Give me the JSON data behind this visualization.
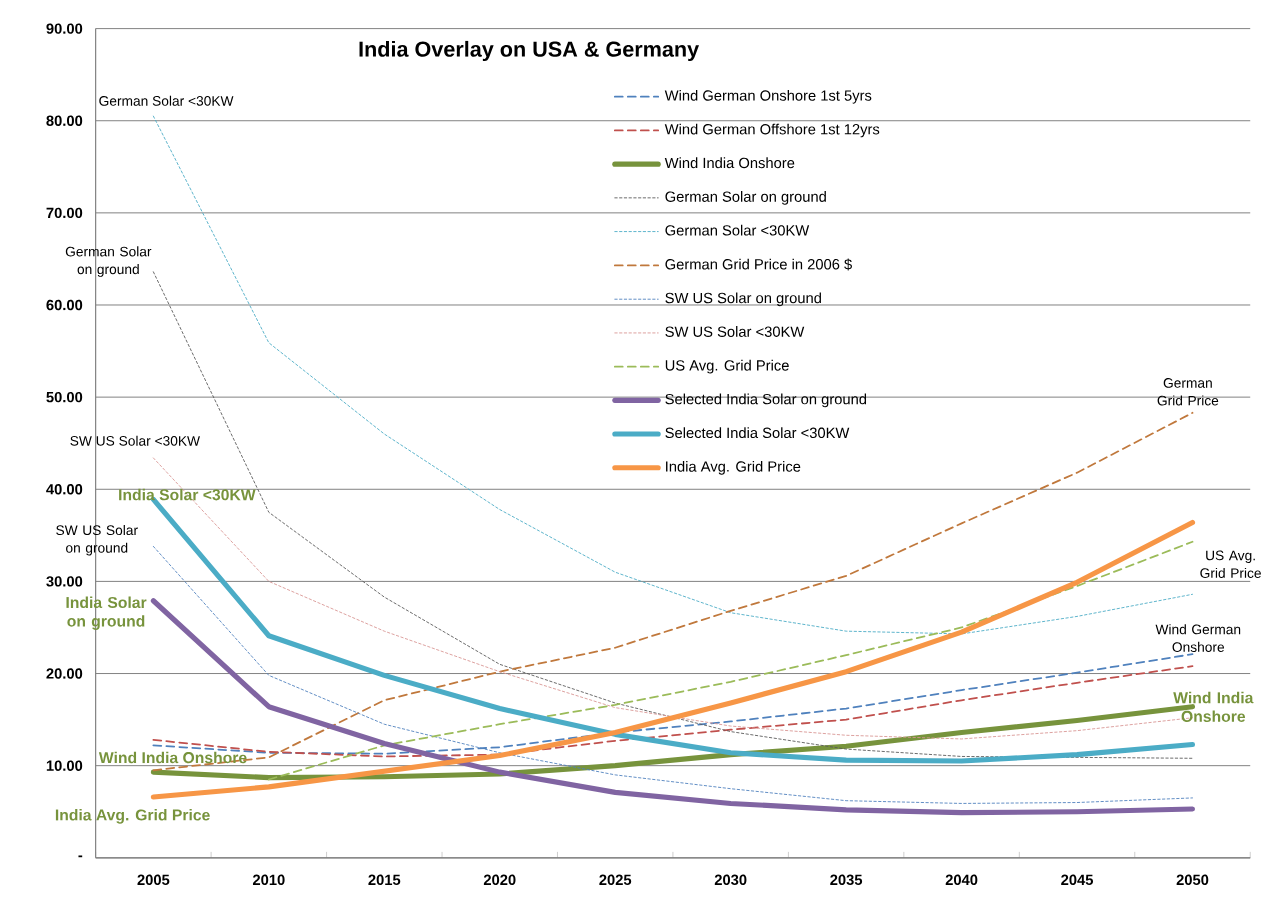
{
  "chart_data": {
    "type": "line",
    "title": "India Overlay on USA & Germany",
    "x": [
      2005,
      2010,
      2015,
      2020,
      2025,
      2030,
      2035,
      2040,
      2045,
      2050
    ],
    "xlim": [
      2002.5,
      2052.5
    ],
    "xticks": [
      2005,
      2010,
      2015,
      2020,
      2025,
      2030,
      2035,
      2040,
      2045,
      2050
    ],
    "ylim": [
      0,
      90
    ],
    "yticks": [
      {
        "value": 0,
        "label": "-"
      },
      {
        "value": 10,
        "label": "10.00"
      },
      {
        "value": 20,
        "label": "20.00"
      },
      {
        "value": 30,
        "label": "30.00"
      },
      {
        "value": 40,
        "label": "40.00"
      },
      {
        "value": 50,
        "label": "50.00"
      },
      {
        "value": 60,
        "label": "60.00"
      },
      {
        "value": 70,
        "label": "70.00"
      },
      {
        "value": 80,
        "label": "80.00"
      },
      {
        "value": 90,
        "label": "90.00"
      }
    ],
    "grid": "y",
    "legend": "top",
    "marker": "none",
    "series": [
      {
        "name": "Wind German Onshore  1st 5yrs",
        "color": "#4f81bd",
        "line_style": "dashed",
        "values": [
          12.2,
          11.4,
          11.3,
          12.0,
          13.6,
          14.8,
          16.2,
          18.2,
          20.1,
          22.1
        ]
      },
      {
        "name": "Wind German Offshore  1st 12yrs",
        "color": "#c0504d",
        "line_style": "dashed",
        "values": [
          12.8,
          11.5,
          11.0,
          11.2,
          12.7,
          13.9,
          15.0,
          17.1,
          19.0,
          20.8
        ]
      },
      {
        "name": "Wind India Onshore",
        "color": "#77933c",
        "line_style": "solid",
        "values": [
          9.3,
          8.7,
          8.8,
          9.1,
          10.0,
          11.2,
          12.1,
          13.6,
          14.9,
          16.4
        ]
      },
      {
        "name": "German Solar on ground",
        "color": "#595959",
        "line_style": "dotted",
        "values": [
          63.6,
          37.5,
          28.3,
          21.0,
          16.8,
          13.7,
          11.8,
          11.0,
          10.9,
          10.8
        ]
      },
      {
        "name": "German Solar <30KW",
        "color": "#4bacc6",
        "line_style": "dotted",
        "values": [
          80.5,
          55.9,
          46.0,
          37.8,
          31.0,
          26.6,
          24.6,
          24.3,
          26.2,
          28.6
        ]
      },
      {
        "name": "German Grid Price in 2006 $",
        "color": "#c0783c",
        "line_style": "dashed",
        "values": [
          9.5,
          10.9,
          17.1,
          20.2,
          22.8,
          26.8,
          30.6,
          36.3,
          41.8,
          48.3
        ]
      },
      {
        "name": "SW US Solar on ground",
        "color": "#4f81bd",
        "line_style": "dotted",
        "values": [
          33.8,
          19.8,
          14.5,
          11.4,
          9.0,
          7.5,
          6.2,
          5.9,
          6.0,
          6.5
        ]
      },
      {
        "name": "SW US Solar <30KW",
        "color": "#d99694",
        "line_style": "dotted",
        "values": [
          43.4,
          30.0,
          24.6,
          20.2,
          16.3,
          14.3,
          13.3,
          12.9,
          13.8,
          15.2
        ]
      },
      {
        "name": "US Avg.  Grid Price",
        "color": "#9bbb59",
        "line_style": "dashed",
        "values": [
          null,
          8.5,
          12.2,
          14.5,
          16.6,
          19.1,
          22.0,
          25.0,
          29.5,
          34.3
        ]
      },
      {
        "name": "Selected India Solar on ground",
        "color": "#8064a2",
        "line_style": "solid",
        "values": [
          27.9,
          16.4,
          12.4,
          9.3,
          7.1,
          5.9,
          5.2,
          4.9,
          5.0,
          5.3
        ]
      },
      {
        "name": "Selected India Solar <30KW",
        "color": "#4bacc6",
        "line_style": "solid",
        "values": [
          38.9,
          24.1,
          19.8,
          16.2,
          13.4,
          11.4,
          10.6,
          10.5,
          11.2,
          12.3
        ]
      },
      {
        "name": "India Avg.  Grid Price",
        "color": "#f79646",
        "line_style": "solid",
        "values": [
          6.6,
          7.7,
          9.4,
          11.1,
          13.6,
          16.8,
          20.2,
          24.5,
          29.9,
          36.4
        ]
      }
    ],
    "annotations": [
      "German Solar <30KW",
      "German Solar on ground",
      "SW US Solar <30KW",
      "SW US Solar on ground",
      "India Solar <30KW",
      "India Solar on ground",
      "Wind India Onshore",
      "India Avg.  Grid Price",
      "German Grid Price",
      "US Avg. Grid Price",
      "Wind German Onshore",
      "Wind India Onshore"
    ]
  }
}
